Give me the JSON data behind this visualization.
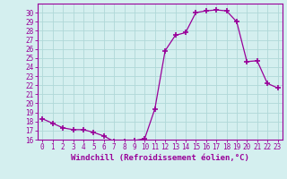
{
  "x": [
    0,
    1,
    2,
    3,
    4,
    5,
    6,
    7,
    8,
    9,
    10,
    11,
    12,
    13,
    14,
    15,
    16,
    17,
    18,
    19,
    20,
    21,
    22,
    23
  ],
  "y": [
    18.3,
    17.8,
    17.3,
    17.1,
    17.1,
    16.8,
    16.4,
    15.8,
    15.8,
    15.9,
    16.1,
    19.4,
    25.8,
    27.5,
    27.8,
    30.0,
    30.2,
    30.3,
    30.2,
    29.0,
    24.6,
    24.7,
    22.2,
    21.7
  ],
  "line_color": "#990099",
  "marker": "+",
  "marker_size": 4,
  "marker_linewidth": 1.2,
  "bg_color": "#d4efef",
  "grid_color": "#b0d8d8",
  "xlabel": "Windchill (Refroidissement éolien,°C)",
  "ylabel": "",
  "title": "",
  "ylim": [
    16,
    31
  ],
  "xlim": [
    -0.5,
    23.5
  ],
  "yticks": [
    16,
    17,
    18,
    19,
    20,
    21,
    22,
    23,
    24,
    25,
    26,
    27,
    28,
    29,
    30
  ],
  "xticks": [
    0,
    1,
    2,
    3,
    4,
    5,
    6,
    7,
    8,
    9,
    10,
    11,
    12,
    13,
    14,
    15,
    16,
    17,
    18,
    19,
    20,
    21,
    22,
    23
  ],
  "tick_label_color": "#990099",
  "axis_color": "#990099",
  "xlabel_color": "#990099",
  "xlabel_fontsize": 6.5,
  "tick_fontsize": 5.5
}
